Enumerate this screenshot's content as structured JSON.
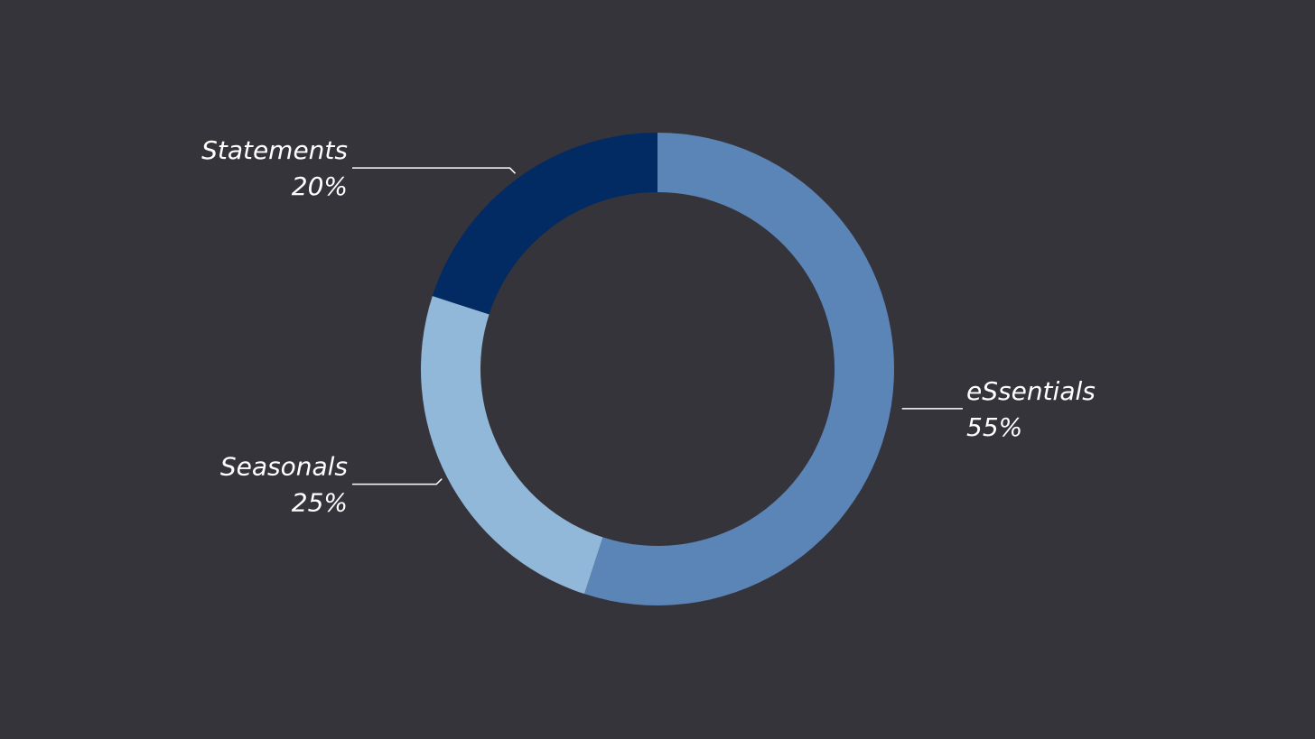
{
  "chart_data": {
    "type": "donut",
    "categories": [
      "eSsentials",
      "Seasonals",
      "Statements"
    ],
    "values": [
      55,
      25,
      20
    ],
    "value_labels": [
      "55%",
      "25%",
      "20%"
    ],
    "colors": [
      "#5b84b7",
      "#92b8d9",
      "#022a63"
    ]
  }
}
